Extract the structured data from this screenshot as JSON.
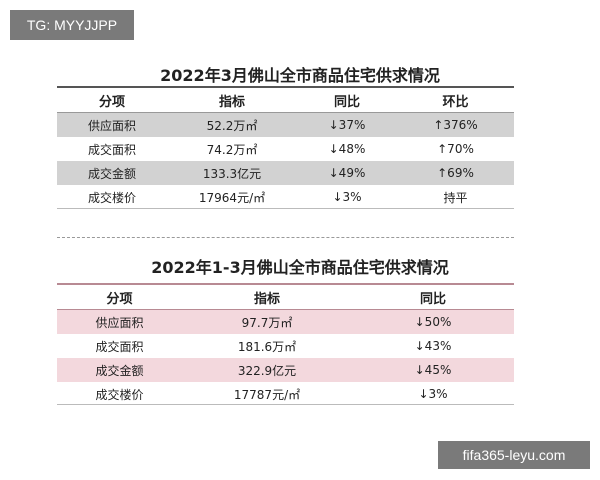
{
  "tag": "TG: MYYJJPP",
  "badge": "fifa365-leyu.com",
  "table1": {
    "title": "2022年3月佛山全市商品住宅供求情况",
    "headers": [
      "分项",
      "指标",
      "同比",
      "环比"
    ],
    "rows": [
      [
        "供应面积",
        "52.2万㎡",
        "↓37%",
        "↑376%"
      ],
      [
        "成交面积",
        "74.2万㎡",
        "↓48%",
        "↑70%"
      ],
      [
        "成交金额",
        "133.3亿元",
        "↓49%",
        "↑69%"
      ],
      [
        "成交楼价",
        "17964元/㎡",
        "↓3%",
        "持平"
      ]
    ]
  },
  "table2": {
    "title": "2022年1-3月佛山全市商品住宅供求情况",
    "headers": [
      "分项",
      "指标",
      "同比"
    ],
    "rows": [
      [
        "供应面积",
        "97.7万㎡",
        "↓50%"
      ],
      [
        "成交面积",
        "181.6万㎡",
        "↓43%"
      ],
      [
        "成交金额",
        "322.9亿元",
        "↓45%"
      ],
      [
        "成交楼价",
        "17787元/㎡",
        "↓3%"
      ]
    ]
  }
}
